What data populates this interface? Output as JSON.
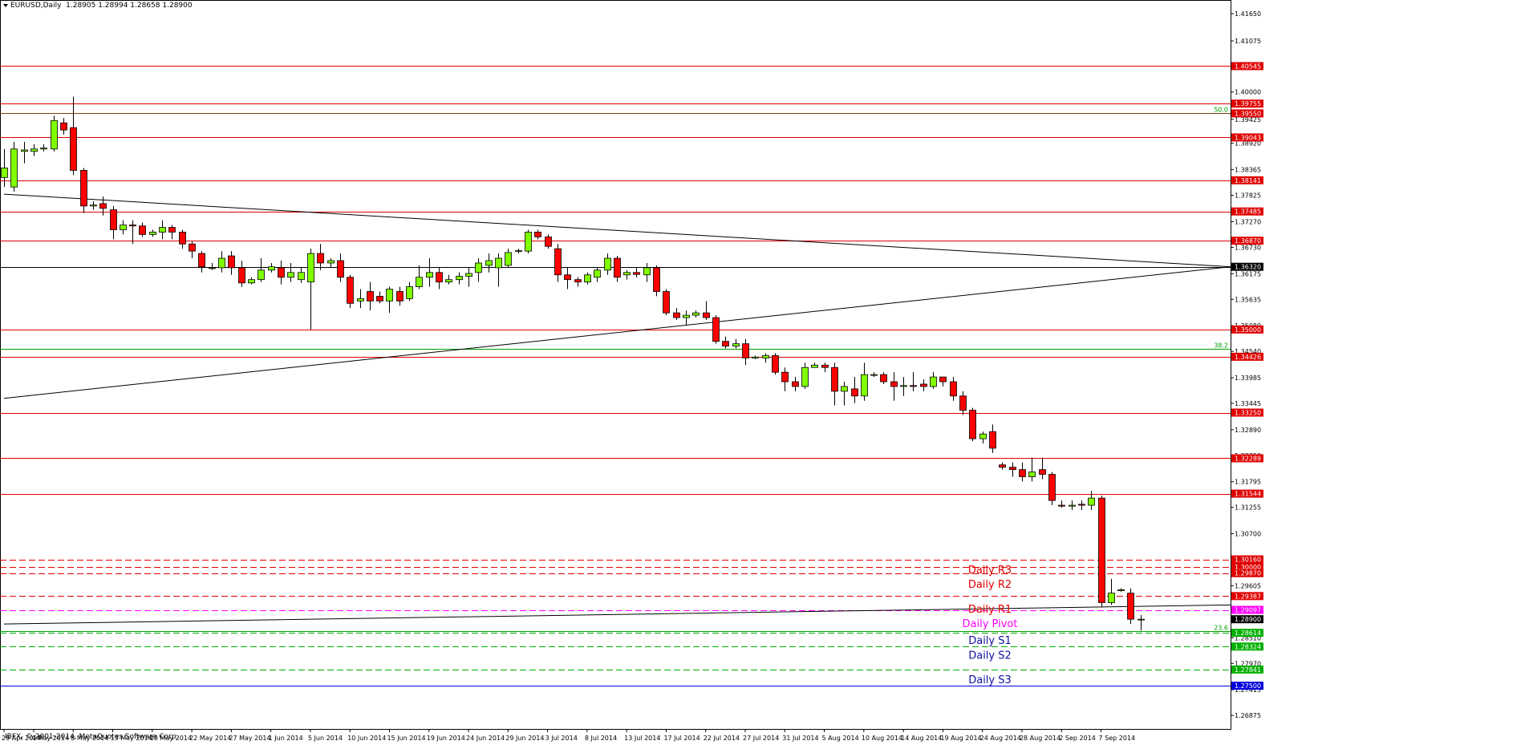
{
  "header": {
    "symbol": "EURUSD,Daily",
    "ohlc": "1.28905 1.28994 1.28658 1.28900"
  },
  "copyright": "IBFX, © 2001-2014, MetaQuotes Software Corp.",
  "colors": {
    "bull": "#80ff00",
    "bear": "#ff0000",
    "resistance": "#e00000",
    "support": "#00b000",
    "pivot": "#ff00ff",
    "trend": "#000000",
    "s3": "#0000dd"
  },
  "chart_data": {
    "type": "candlestick",
    "symbol": "EURUSD",
    "timeframe": "Daily",
    "ylim": [
      1.2659,
      1.4192
    ],
    "y_ticks": [
      "1.41650",
      "1.41075",
      "1.40000",
      "1.39425",
      "1.38920",
      "1.38365",
      "1.37825",
      "1.37270",
      "1.36730",
      "1.36175",
      "1.35635",
      "1.35080",
      "1.34540",
      "1.33985",
      "1.33445",
      "1.32890",
      "1.32350",
      "1.31795",
      "1.31255",
      "1.30700",
      "1.30160",
      "1.29605",
      "1.29065",
      "1.28510",
      "1.27970",
      "1.27415",
      "1.26875"
    ],
    "x_ticks": [
      {
        "label": "29 Apr 2014",
        "i": 0
      },
      {
        "label": "4 May 2014",
        "i": 3
      },
      {
        "label": "8 May 2014",
        "i": 7
      },
      {
        "label": "13 May 2014",
        "i": 11
      },
      {
        "label": "18 May 2014",
        "i": 15
      },
      {
        "label": "22 May 2014",
        "i": 19
      },
      {
        "label": "27 May 2014",
        "i": 23
      },
      {
        "label": "1 Jun 2014",
        "i": 27
      },
      {
        "label": "5 Jun 2014",
        "i": 31
      },
      {
        "label": "10 Jun 2014",
        "i": 35
      },
      {
        "label": "15 Jun 2014",
        "i": 39
      },
      {
        "label": "19 Jun 2014",
        "i": 43
      },
      {
        "label": "24 Jun 2014",
        "i": 47
      },
      {
        "label": "29 Jun 2014",
        "i": 51
      },
      {
        "label": "3 Jul 2014",
        "i": 55
      },
      {
        "label": "8 Jul 2014",
        "i": 59
      },
      {
        "label": "13 Jul 2014",
        "i": 63
      },
      {
        "label": "17 Jul 2014",
        "i": 67
      },
      {
        "label": "22 Jul 2014",
        "i": 71
      },
      {
        "label": "27 Jul 2014",
        "i": 75
      },
      {
        "label": "31 Jul 2014",
        "i": 79
      },
      {
        "label": "5 Aug 2014",
        "i": 83
      },
      {
        "label": "10 Aug 2014",
        "i": 87
      },
      {
        "label": "14 Aug 2014",
        "i": 91
      },
      {
        "label": "19 Aug 2014",
        "i": 95
      },
      {
        "label": "24 Aug 2014",
        "i": 99
      },
      {
        "label": "28 Aug 2014",
        "i": 103
      },
      {
        "label": "2 Sep 2014",
        "i": 107
      },
      {
        "label": "7 Sep 2014",
        "i": 111
      }
    ],
    "candles": [
      [
        1.382,
        1.388,
        1.384,
        1.38
      ],
      [
        1.38,
        1.3895,
        1.388,
        1.379
      ],
      [
        1.3875,
        1.3895,
        1.3878,
        1.385
      ],
      [
        1.3875,
        1.389,
        1.388,
        1.3865
      ],
      [
        1.388,
        1.389,
        1.3882,
        1.3875
      ],
      [
        1.388,
        1.395,
        1.394,
        1.3875
      ],
      [
        1.3935,
        1.3945,
        1.392,
        1.391
      ],
      [
        1.3925,
        1.399,
        1.3835,
        1.3825
      ],
      [
        1.3835,
        1.384,
        1.376,
        1.3745
      ],
      [
        1.376,
        1.377,
        1.3762,
        1.3752
      ],
      [
        1.3765,
        1.378,
        1.3755,
        1.374
      ],
      [
        1.3752,
        1.376,
        1.371,
        1.369
      ],
      [
        1.371,
        1.373,
        1.372,
        1.37
      ],
      [
        1.372,
        1.373,
        1.3718,
        1.368
      ],
      [
        1.3718,
        1.3725,
        1.37,
        1.3695
      ],
      [
        1.37,
        1.371,
        1.3705,
        1.3695
      ],
      [
        1.3705,
        1.373,
        1.3715,
        1.369
      ],
      [
        1.3715,
        1.372,
        1.3705,
        1.369
      ],
      [
        1.3705,
        1.371,
        1.368,
        1.367
      ],
      [
        1.368,
        1.3685,
        1.3665,
        1.365
      ],
      [
        1.366,
        1.3665,
        1.3632,
        1.362
      ],
      [
        1.363,
        1.364,
        1.363,
        1.3625
      ],
      [
        1.363,
        1.3665,
        1.365,
        1.362
      ],
      [
        1.3655,
        1.3665,
        1.363,
        1.3615
      ],
      [
        1.363,
        1.3645,
        1.3598,
        1.359
      ],
      [
        1.3598,
        1.361,
        1.3605,
        1.3595
      ],
      [
        1.3605,
        1.365,
        1.3625,
        1.36
      ],
      [
        1.3625,
        1.364,
        1.3632,
        1.362
      ],
      [
        1.363,
        1.3645,
        1.361,
        1.3595
      ],
      [
        1.361,
        1.364,
        1.362,
        1.36
      ],
      [
        1.3605,
        1.363,
        1.362,
        1.3598
      ],
      [
        1.36,
        1.367,
        1.366,
        1.35
      ],
      [
        1.366,
        1.368,
        1.364,
        1.3625
      ],
      [
        1.364,
        1.365,
        1.3645,
        1.363
      ],
      [
        1.3645,
        1.366,
        1.361,
        1.36
      ],
      [
        1.361,
        1.3615,
        1.3555,
        1.3545
      ],
      [
        1.356,
        1.3585,
        1.3565,
        1.3545
      ],
      [
        1.358,
        1.36,
        1.356,
        1.354
      ],
      [
        1.357,
        1.358,
        1.356,
        1.3555
      ],
      [
        1.356,
        1.359,
        1.3585,
        1.3535
      ],
      [
        1.358,
        1.359,
        1.356,
        1.355
      ],
      [
        1.3565,
        1.36,
        1.359,
        1.356
      ],
      [
        1.359,
        1.3635,
        1.361,
        1.3585
      ],
      [
        1.361,
        1.365,
        1.362,
        1.359
      ],
      [
        1.362,
        1.363,
        1.36,
        1.3585
      ],
      [
        1.36,
        1.3615,
        1.3605,
        1.3595
      ],
      [
        1.3605,
        1.362,
        1.3612,
        1.3595
      ],
      [
        1.3612,
        1.363,
        1.3618,
        1.359
      ],
      [
        1.362,
        1.365,
        1.364,
        1.36
      ],
      [
        1.3635,
        1.366,
        1.3645,
        1.362
      ],
      [
        1.363,
        1.366,
        1.365,
        1.359
      ],
      [
        1.3635,
        1.367,
        1.3662,
        1.363
      ],
      [
        1.3665,
        1.367,
        1.3666,
        1.366
      ],
      [
        1.3665,
        1.371,
        1.3705,
        1.366
      ],
      [
        1.3705,
        1.371,
        1.3695,
        1.369
      ],
      [
        1.3695,
        1.37,
        1.3675,
        1.367
      ],
      [
        1.367,
        1.368,
        1.3615,
        1.36
      ],
      [
        1.3615,
        1.363,
        1.3605,
        1.3585
      ],
      [
        1.3605,
        1.361,
        1.36,
        1.359
      ],
      [
        1.36,
        1.362,
        1.3615,
        1.3595
      ],
      [
        1.361,
        1.363,
        1.3625,
        1.36
      ],
      [
        1.3625,
        1.366,
        1.365,
        1.3615
      ],
      [
        1.365,
        1.3655,
        1.361,
        1.36
      ],
      [
        1.3615,
        1.3625,
        1.362,
        1.3605
      ],
      [
        1.362,
        1.363,
        1.3616,
        1.361
      ],
      [
        1.3615,
        1.364,
        1.363,
        1.36
      ],
      [
        1.363,
        1.3635,
        1.358,
        1.357
      ],
      [
        1.358,
        1.3585,
        1.3535,
        1.353
      ],
      [
        1.3535,
        1.3545,
        1.3525,
        1.352
      ],
      [
        1.3525,
        1.354,
        1.353,
        1.351
      ],
      [
        1.353,
        1.354,
        1.3535,
        1.3525
      ],
      [
        1.3535,
        1.356,
        1.3525,
        1.352
      ],
      [
        1.3525,
        1.353,
        1.3475,
        1.347
      ],
      [
        1.3475,
        1.3485,
        1.3465,
        1.346
      ],
      [
        1.3465,
        1.348,
        1.347,
        1.346
      ],
      [
        1.347,
        1.348,
        1.344,
        1.3425
      ],
      [
        1.344,
        1.3445,
        1.3442,
        1.3438
      ],
      [
        1.344,
        1.345,
        1.3445,
        1.343
      ],
      [
        1.3445,
        1.345,
        1.341,
        1.3405
      ],
      [
        1.341,
        1.342,
        1.339,
        1.337
      ],
      [
        1.339,
        1.34,
        1.338,
        1.337
      ],
      [
        1.338,
        1.343,
        1.342,
        1.3375
      ],
      [
        1.342,
        1.343,
        1.3425,
        1.342
      ],
      [
        1.3425,
        1.343,
        1.342,
        1.341
      ],
      [
        1.342,
        1.343,
        1.337,
        1.334
      ],
      [
        1.337,
        1.339,
        1.338,
        1.334
      ],
      [
        1.3375,
        1.34,
        1.336,
        1.3345
      ],
      [
        1.336,
        1.343,
        1.3405,
        1.335
      ],
      [
        1.3405,
        1.341,
        1.3405,
        1.34
      ],
      [
        1.3405,
        1.341,
        1.339,
        1.3385
      ],
      [
        1.339,
        1.341,
        1.338,
        1.335
      ],
      [
        1.338,
        1.34,
        1.3382,
        1.336
      ],
      [
        1.3382,
        1.341,
        1.338,
        1.337
      ],
      [
        1.3385,
        1.3395,
        1.338,
        1.337
      ],
      [
        1.338,
        1.341,
        1.34,
        1.3375
      ],
      [
        1.34,
        1.34,
        1.339,
        1.338
      ],
      [
        1.339,
        1.34,
        1.336,
        1.335
      ],
      [
        1.336,
        1.337,
        1.333,
        1.332
      ],
      [
        1.333,
        1.3335,
        1.327,
        1.3265
      ],
      [
        1.327,
        1.3285,
        1.328,
        1.326
      ],
      [
        1.3285,
        1.33,
        1.325,
        1.324
      ],
      [
        1.3215,
        1.322,
        1.321,
        1.3205
      ],
      [
        1.321,
        1.322,
        1.3205,
        1.319
      ],
      [
        1.3205,
        1.322,
        1.319,
        1.318
      ],
      [
        1.319,
        1.323,
        1.32,
        1.318
      ],
      [
        1.3205,
        1.323,
        1.3195,
        1.3185
      ],
      [
        1.3195,
        1.32,
        1.314,
        1.313
      ],
      [
        1.313,
        1.314,
        1.3128,
        1.3125
      ],
      [
        1.3128,
        1.314,
        1.313,
        1.312
      ],
      [
        1.3132,
        1.314,
        1.313,
        1.312
      ],
      [
        1.313,
        1.316,
        1.3145,
        1.312
      ],
      [
        1.3145,
        1.315,
        1.2925,
        1.2915
      ],
      [
        1.2925,
        1.2975,
        1.2945,
        1.292
      ],
      [
        1.295,
        1.2955,
        1.2952,
        1.2948
      ],
      [
        1.2945,
        1.2955,
        1.289,
        1.288
      ],
      [
        1.289,
        1.2899,
        1.289,
        1.2866
      ]
    ],
    "levels": [
      {
        "price": 1.40545,
        "label": "1.40545",
        "kind": "res",
        "style": "solid"
      },
      {
        "price": 1.39755,
        "label": "1.39755",
        "kind": "res",
        "style": "solid"
      },
      {
        "price": 1.3955,
        "label": "1.39550",
        "kind": "fib",
        "style": "solid"
      },
      {
        "price": 1.39043,
        "label": "1.39043",
        "kind": "res",
        "style": "solid"
      },
      {
        "price": 1.38141,
        "label": "1.38141",
        "kind": "res",
        "style": "solid"
      },
      {
        "price": 1.37485,
        "label": "1.37485",
        "kind": "res",
        "style": "solid"
      },
      {
        "price": 1.3687,
        "label": "1.36870",
        "kind": "res",
        "style": "solid"
      },
      {
        "price": 1.3632,
        "label": "1.36320",
        "kind": "black",
        "style": "solid"
      },
      {
        "price": 1.35,
        "label": "1.35000",
        "kind": "res",
        "style": "solid"
      },
      {
        "price": 1.34426,
        "label": "1.34426",
        "kind": "res",
        "style": "solid"
      },
      {
        "price": 1.3325,
        "label": "1.33250",
        "kind": "res",
        "style": "solid"
      },
      {
        "price": 1.32289,
        "label": "1.32289",
        "kind": "res",
        "style": "solid"
      },
      {
        "price": 1.31544,
        "label": "1.31544",
        "kind": "res",
        "style": "solid"
      },
      {
        "price": 1.3016,
        "label": "1.30160",
        "kind": "res",
        "style": "dashed"
      },
      {
        "price": 1.3,
        "label": "1.30000",
        "kind": "res",
        "style": "dashed"
      },
      {
        "price": 1.2987,
        "label": "1.29870",
        "kind": "res",
        "style": "dashed"
      },
      {
        "price": 1.29387,
        "label": "1.29387",
        "kind": "res",
        "style": "dashed"
      },
      {
        "price": 1.29097,
        "label": "1.29097",
        "kind": "pivot",
        "style": "dashed"
      },
      {
        "price": 1.289,
        "label": "1.28900",
        "kind": "current",
        "style": "none"
      },
      {
        "price": 1.28614,
        "label": "1.28614",
        "kind": "sup",
        "style": "dashed"
      },
      {
        "price": 1.28324,
        "label": "1.28324",
        "kind": "sup",
        "style": "dashed"
      },
      {
        "price": 1.27841,
        "label": "1.27841",
        "kind": "sup",
        "style": "dashed"
      },
      {
        "price": 1.275,
        "label": "1.27500",
        "kind": "s3",
        "style": "solid"
      }
    ],
    "fib_lines": [
      {
        "price": 1.3955,
        "label": "50.0"
      },
      {
        "price": 1.346,
        "label": "38.2"
      },
      {
        "price": 1.2865,
        "label": "23.6"
      }
    ],
    "pivot_labels": [
      {
        "text": "Daily R3",
        "price": 1.2995,
        "kind": "res"
      },
      {
        "text": "Daily R2",
        "price": 1.2965,
        "kind": "res"
      },
      {
        "text": "Daily R1",
        "price": 1.2912,
        "kind": "res"
      },
      {
        "text": "Daily Pivot",
        "price": 1.2882,
        "kind": "pivot"
      },
      {
        "text": "Daily S1",
        "price": 1.2846,
        "kind": "s1"
      },
      {
        "text": "Daily S2",
        "price": 1.2815,
        "kind": "s1"
      },
      {
        "text": "Daily S3",
        "price": 1.2764,
        "kind": "s1"
      }
    ],
    "trend_lines": [
      {
        "from": {
          "i": 0,
          "price": 1.3785
        },
        "to": {
          "i": 125,
          "price": 1.3632
        }
      },
      {
        "from": {
          "i": 0,
          "price": 1.3355
        },
        "to": {
          "i": 125,
          "price": 1.3632
        }
      },
      {
        "from": {
          "i": 0,
          "price": 1.288
        },
        "to": {
          "i": 125,
          "price": 1.292
        }
      }
    ]
  }
}
